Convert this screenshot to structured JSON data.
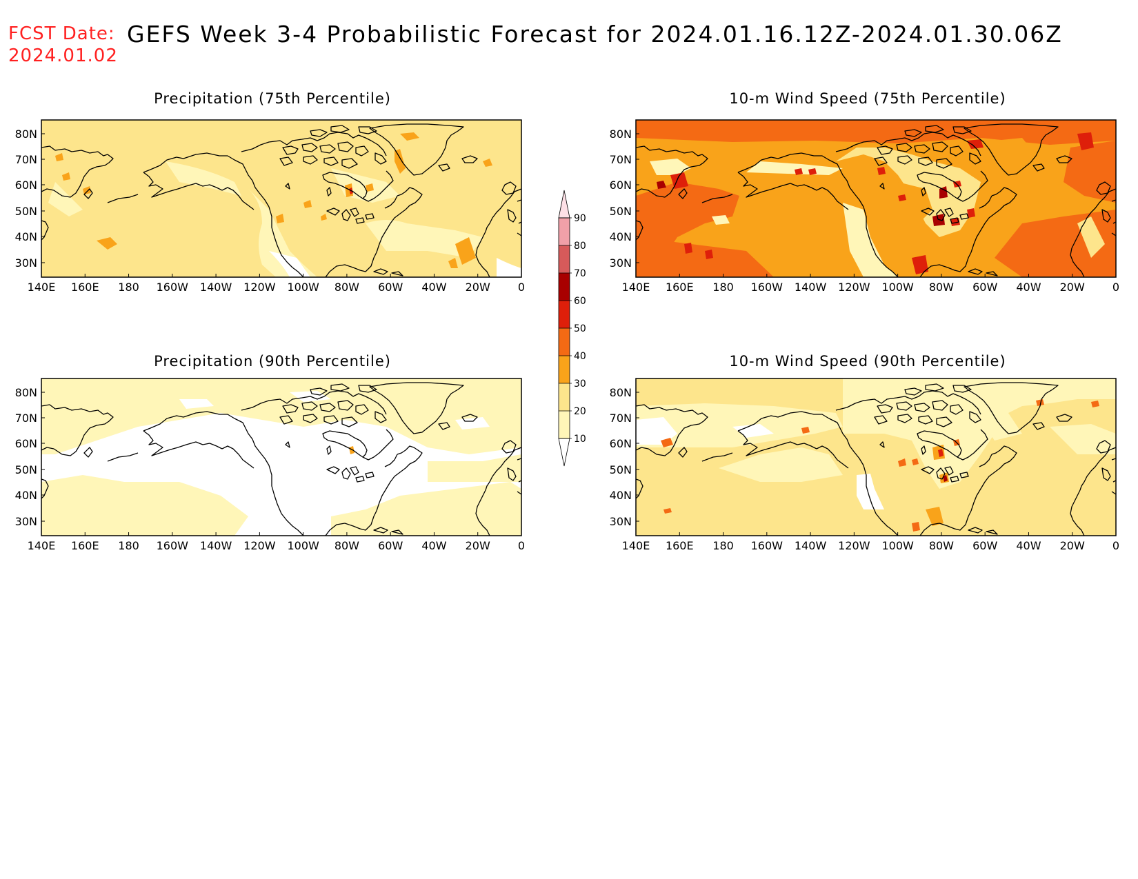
{
  "header": {
    "fcst_label": "FCST Date:",
    "fcst_date": "2024.01.02",
    "title": "GEFS Week 3-4 Probabilistic Forecast for 2024.01.16.12Z-2024.01.30.06Z"
  },
  "panels": [
    {
      "id": "precip75",
      "title": "Precipitation (75th Percentile)"
    },
    {
      "id": "wind75",
      "title": "10-m Wind Speed (75th Percentile)"
    },
    {
      "id": "precip90",
      "title": "Precipitation (90th Percentile)"
    },
    {
      "id": "wind90",
      "title": "10-m Wind Speed (90th Percentile)"
    }
  ],
  "lat_labels": [
    "80N",
    "70N",
    "60N",
    "50N",
    "40N",
    "30N"
  ],
  "lon_labels": [
    "140E",
    "160E",
    "180",
    "160W",
    "140W",
    "120W",
    "100W",
    "80W",
    "60W",
    "40W",
    "20W",
    "0"
  ],
  "colorbar": {
    "labels": [
      "10",
      "20",
      "30",
      "40",
      "50",
      "60",
      "70",
      "80",
      "90"
    ],
    "colors": [
      "#ffffff",
      "#fff6b8",
      "#fde58c",
      "#f9a31a",
      "#f46a14",
      "#de1f0a",
      "#a80000",
      "#d65a5a",
      "#f0a0a8",
      "#fde0e6"
    ]
  },
  "colors": {
    "fcst_red": "#ff2020",
    "white": "#ffffff",
    "pale_yellow": "#fff6b8",
    "yellow": "#fde58c",
    "orange": "#f9a31a",
    "dark_orange": "#f46a14",
    "red": "#de1f0a",
    "dark_red": "#a80000"
  }
}
